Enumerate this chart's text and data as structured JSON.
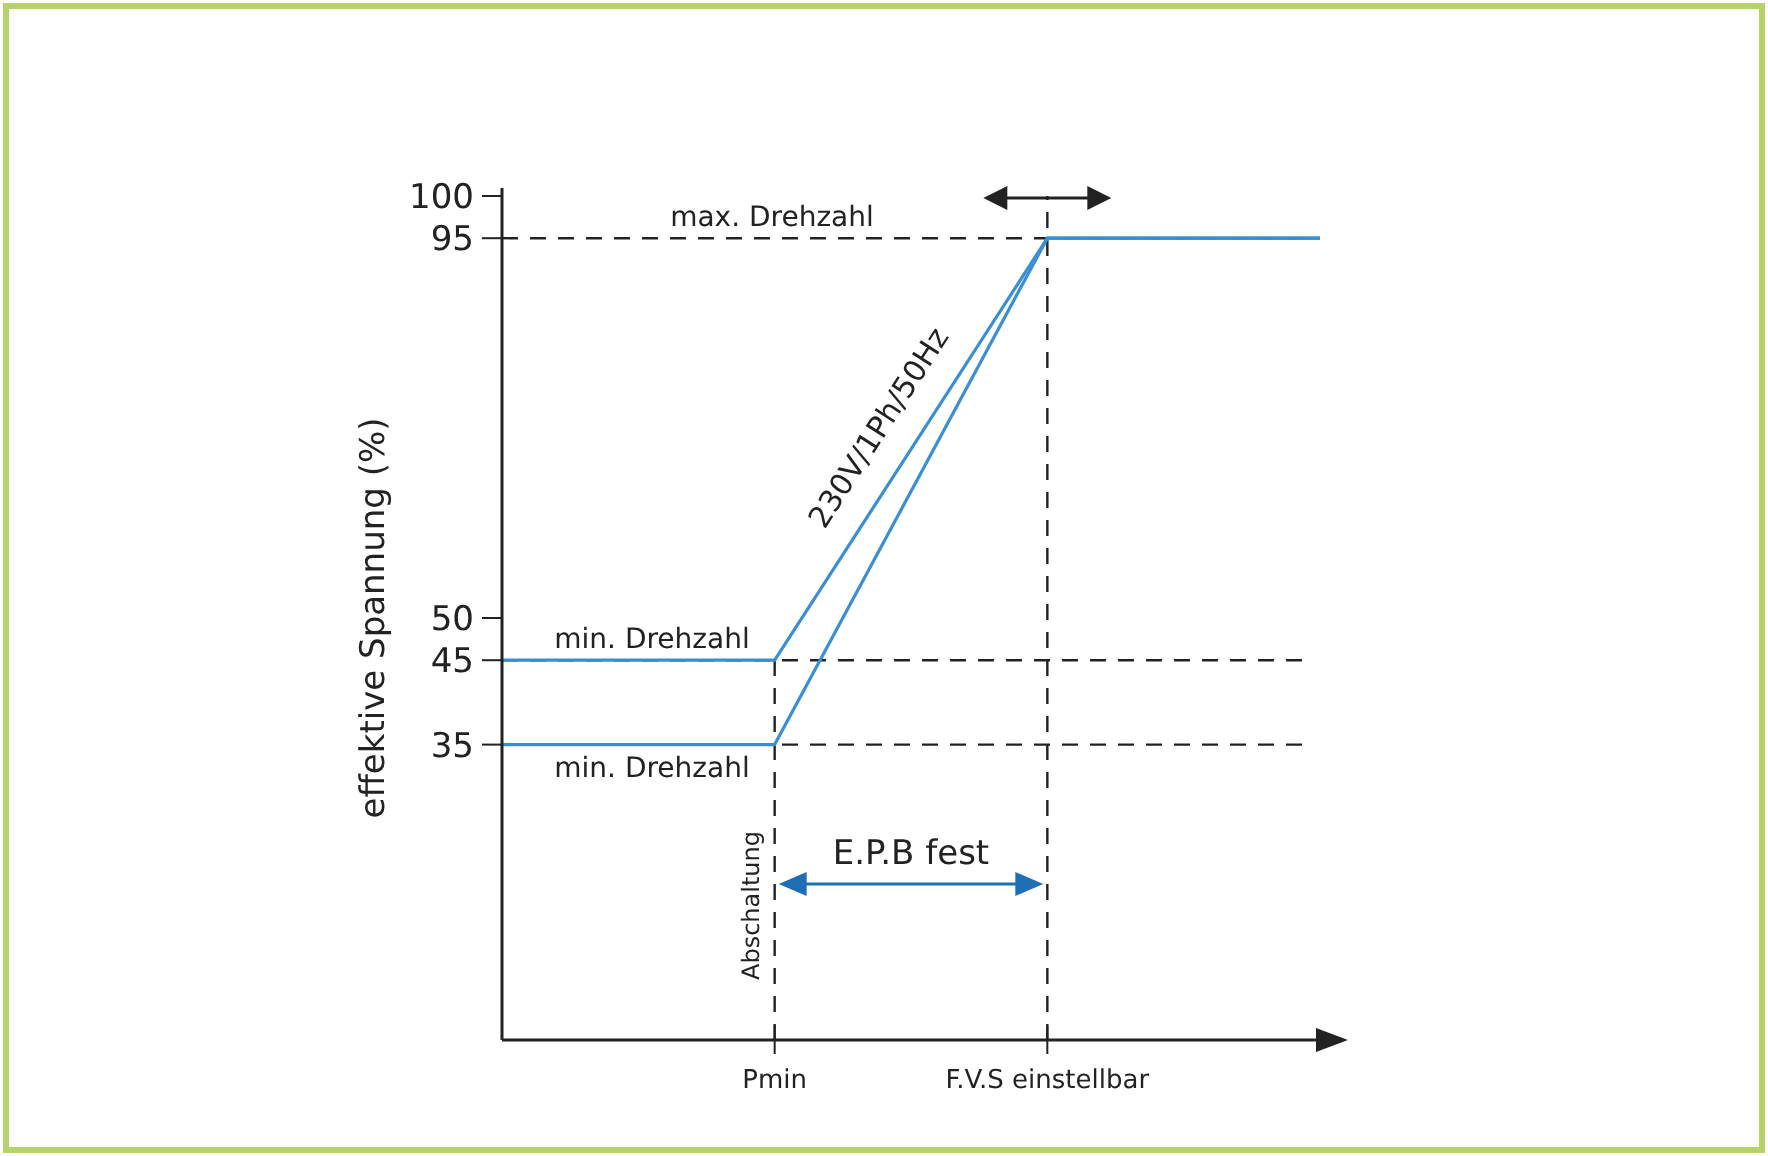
{
  "chart_data": {
    "type": "line",
    "ylabel": "effektive Spannung (%)",
    "categories": [
      null,
      "Pmin",
      "F.V.S einstellbar",
      null
    ],
    "ylim": [
      0,
      100
    ],
    "yticks": [
      35,
      45,
      50,
      95,
      100
    ],
    "series": [
      {
        "color": "#3a8fd4",
        "values": [
          45,
          45,
          95,
          95
        ]
      },
      {
        "color": "#3a8fd4",
        "values": [
          35,
          35,
          95,
          95
        ]
      }
    ],
    "ref_lines": [
      {
        "axis": "y",
        "value": 95,
        "label": "max. Drehzahl",
        "line_style": "dashed"
      },
      {
        "axis": "y",
        "value": 45,
        "label": "min. Drehzahl",
        "line_style": "dashed"
      },
      {
        "axis": "y",
        "value": 35,
        "label": "min. Drehzahl",
        "line_style": "dashed"
      },
      {
        "axis": "x",
        "value": "Pmin",
        "label": "Abschaltung",
        "line_style": "dashed"
      },
      {
        "axis": "x",
        "value": "F.V.S einstellbar",
        "line_style": "dashed"
      }
    ],
    "annotations": [
      "230V/1Ph/50Hz",
      "E.P.B fest"
    ],
    "marker": "none",
    "line_style": "solid"
  }
}
